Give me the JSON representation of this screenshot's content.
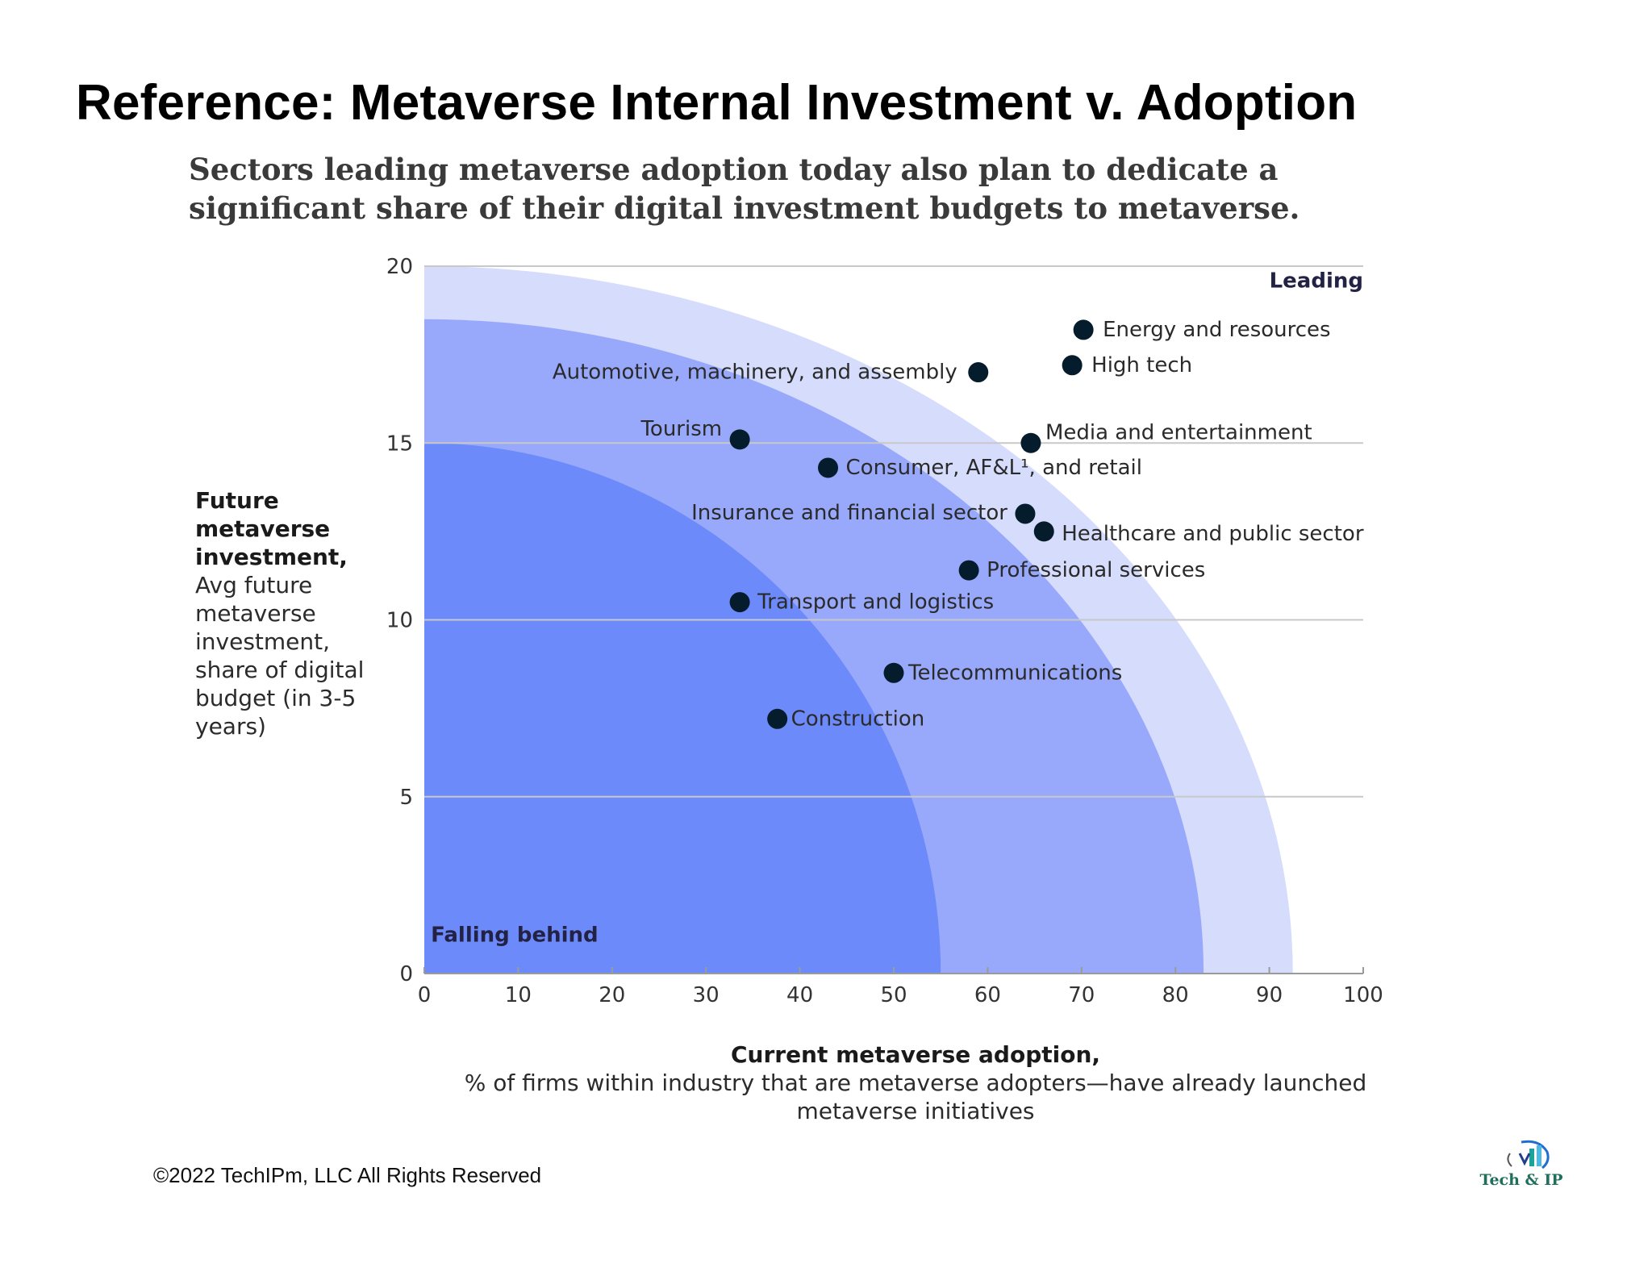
{
  "header": {
    "title": "Reference: Metaverse Internal Investment v. Adoption"
  },
  "chart_data": {
    "type": "scatter",
    "title": "Sectors leading metaverse adoption today also plan to dedicate a significant share of their digital investment budgets to metaverse.",
    "ylabel_bold": "Future metaverse investment,",
    "ylabel": "Avg future metaverse investment, share of digital budget (in 3-5 years)",
    "xlabel_bold": "Current metaverse adoption,",
    "xlabel": "% of firms within industry that are metaverse adopters—have already launched metaverse initiatives",
    "xlim": [
      0,
      100
    ],
    "ylim": [
      0,
      20
    ],
    "x_ticks": [
      0,
      10,
      20,
      30,
      40,
      50,
      60,
      70,
      80,
      90,
      100
    ],
    "y_ticks": [
      0,
      5,
      10,
      15,
      20
    ],
    "grid": "horizontal",
    "zones": {
      "top_right": "Leading",
      "bottom_left": "Falling behind",
      "colors": [
        "#d6dcfc",
        "#98a9fb",
        "#6d8afa"
      ]
    },
    "points": [
      {
        "label": "Energy and resources",
        "x": 70.2,
        "y": 18.2
      },
      {
        "label": "High tech",
        "x": 69,
        "y": 17.2
      },
      {
        "label": "Automotive, machinery, and assembly",
        "x": 59,
        "y": 17
      },
      {
        "label": "Tourism",
        "x": 33.6,
        "y": 15.1
      },
      {
        "label": "Media and entertainment",
        "x": 64.6,
        "y": 15
      },
      {
        "label": "Consumer, AF&L¹, and retail",
        "x": 43,
        "y": 14.3
      },
      {
        "label": "Insurance and financial sector",
        "x": 64,
        "y": 13
      },
      {
        "label": "Healthcare and public sector",
        "x": 66,
        "y": 12.5
      },
      {
        "label": "Professional services",
        "x": 58,
        "y": 11.4
      },
      {
        "label": "Transport and logistics",
        "x": 33.6,
        "y": 10.5
      },
      {
        "label": "Telecommunications",
        "x": 50,
        "y": 8.5
      },
      {
        "label": "Construction",
        "x": 37.6,
        "y": 7.2
      }
    ]
  },
  "footer": {
    "copyright": "©2022 TechIPm, LLC All Rights Reserved",
    "logo_text": "Tech & IP"
  }
}
